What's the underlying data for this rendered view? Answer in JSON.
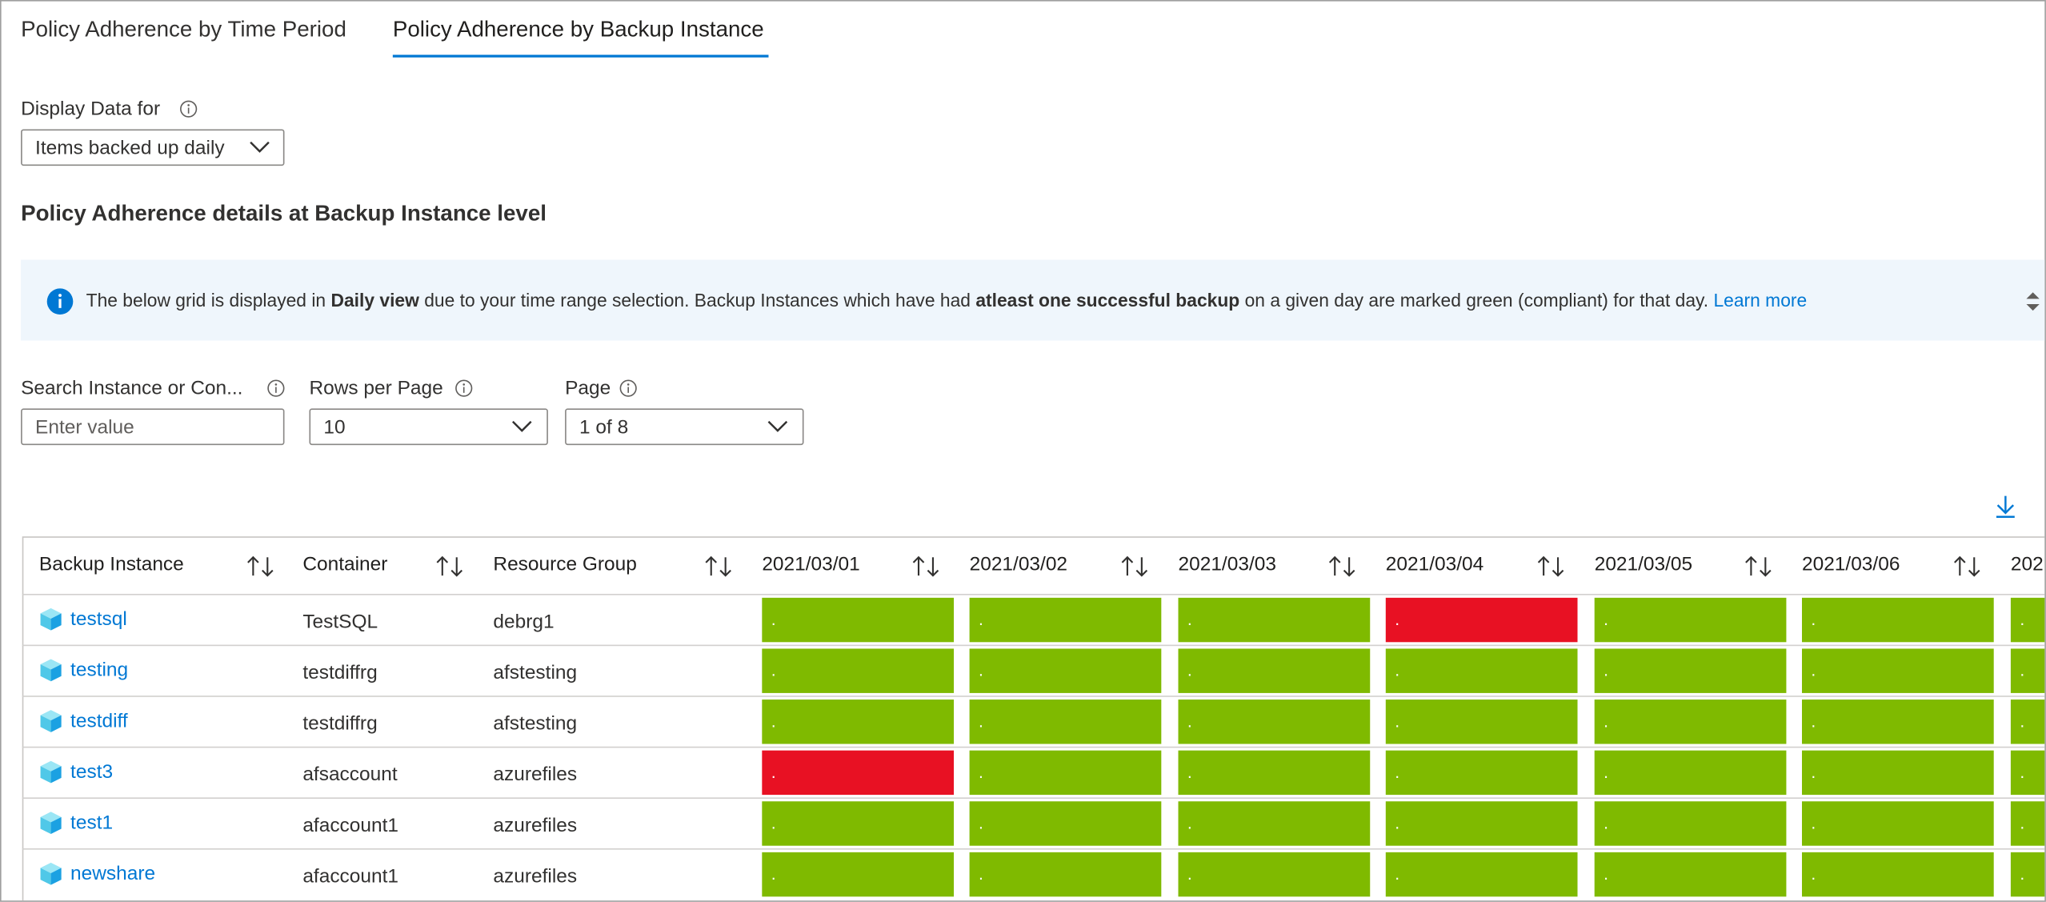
{
  "tabs": [
    {
      "label": "Policy Adherence by Time Period"
    },
    {
      "label": "Policy Adherence by Backup Instance"
    }
  ],
  "display_filter": {
    "label": "Display Data for",
    "value": "Items backed up daily"
  },
  "section_title": "Policy Adherence details at Backup Instance level",
  "banner": {
    "segments": [
      {
        "text": "The below grid is displayed in ",
        "bold": false
      },
      {
        "text": "Daily view",
        "bold": true
      },
      {
        "text": " due to your time range selection. Backup Instances which have had ",
        "bold": false
      },
      {
        "text": "atleast one successful backup",
        "bold": true
      },
      {
        "text": " on a given day are marked green (compliant) for that day.",
        "bold": false
      }
    ],
    "link": "Learn more"
  },
  "filters": [
    {
      "label": "Search Instance or Con...",
      "placeholder": "Enter value"
    },
    {
      "label": "Rows per Page",
      "value": "10"
    },
    {
      "label": "Page",
      "value": "1 of 8"
    }
  ],
  "table": {
    "columns": [
      "Backup Instance",
      "Container",
      "Resource Group",
      "2021/03/01",
      "2021/03/02",
      "2021/03/03",
      "2021/03/04",
      "2021/03/05",
      "2021/03/06",
      "202"
    ],
    "rows": [
      {
        "instance": "testsql",
        "container": "TestSQL",
        "resource_group": "debrg1",
        "cells": [
          {
            "text": ".",
            "color": "#7fba00"
          },
          {
            "text": ".",
            "color": "#7fba00"
          },
          {
            "text": ".",
            "color": "#7fba00"
          },
          {
            "text": ".",
            "color": "#e81123"
          },
          {
            "text": ".",
            "color": "#7fba00"
          },
          {
            "text": ".",
            "color": "#7fba00"
          },
          {
            "text": ".",
            "color": "#7fba00"
          }
        ]
      },
      {
        "instance": "testing",
        "container": "testdiffrg",
        "resource_group": "afstesting",
        "cells": [
          {
            "text": ".",
            "color": "#7fba00"
          },
          {
            "text": ".",
            "color": "#7fba00"
          },
          {
            "text": ".",
            "color": "#7fba00"
          },
          {
            "text": ".",
            "color": "#7fba00"
          },
          {
            "text": ".",
            "color": "#7fba00"
          },
          {
            "text": ".",
            "color": "#7fba00"
          },
          {
            "text": ".",
            "color": "#7fba00"
          }
        ]
      },
      {
        "instance": "testdiff",
        "container": "testdiffrg",
        "resource_group": "afstesting",
        "cells": [
          {
            "text": ".",
            "color": "#7fba00"
          },
          {
            "text": ".",
            "color": "#7fba00"
          },
          {
            "text": ".",
            "color": "#7fba00"
          },
          {
            "text": ".",
            "color": "#7fba00"
          },
          {
            "text": ".",
            "color": "#7fba00"
          },
          {
            "text": ".",
            "color": "#7fba00"
          },
          {
            "text": ".",
            "color": "#7fba00"
          }
        ]
      },
      {
        "instance": "test3",
        "container": "afsaccount",
        "resource_group": "azurefiles",
        "cells": [
          {
            "text": ".",
            "color": "#e81123"
          },
          {
            "text": ".",
            "color": "#7fba00"
          },
          {
            "text": ".",
            "color": "#7fba00"
          },
          {
            "text": ".",
            "color": "#7fba00"
          },
          {
            "text": ".",
            "color": "#7fba00"
          },
          {
            "text": ".",
            "color": "#7fba00"
          },
          {
            "text": ".",
            "color": "#7fba00"
          }
        ]
      },
      {
        "instance": "test1",
        "container": "afaccount1",
        "resource_group": "azurefiles",
        "cells": [
          {
            "text": ".",
            "color": "#7fba00"
          },
          {
            "text": ".",
            "color": "#7fba00"
          },
          {
            "text": ".",
            "color": "#7fba00"
          },
          {
            "text": ".",
            "color": "#7fba00"
          },
          {
            "text": ".",
            "color": "#7fba00"
          },
          {
            "text": ".",
            "color": "#7fba00"
          },
          {
            "text": ".",
            "color": "#7fba00"
          }
        ]
      },
      {
        "instance": "newshare",
        "container": "afaccount1",
        "resource_group": "azurefiles",
        "cells": [
          {
            "text": ".",
            "color": "#7fba00"
          },
          {
            "text": ".",
            "color": "#7fba00"
          },
          {
            "text": ".",
            "color": "#7fba00"
          },
          {
            "text": ".",
            "color": "#7fba00"
          },
          {
            "text": ".",
            "color": "#7fba00"
          },
          {
            "text": ".",
            "color": "#7fba00"
          },
          {
            "text": ".",
            "color": "#7fba00"
          }
        ]
      }
    ]
  }
}
